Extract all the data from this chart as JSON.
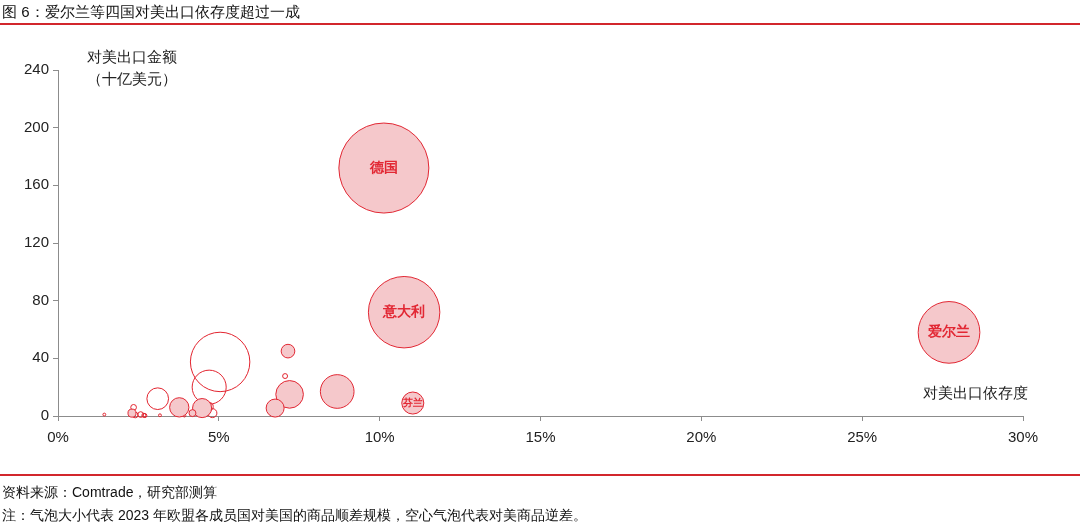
{
  "chart_data": {
    "type": "bubble",
    "title": "图 6：爱尔兰等四国对美出口依存度超过一成",
    "xlabel": "对美出口依存度",
    "ylabel": "对美出口金额（十亿美元）",
    "annotations": [
      {
        "text": "德国",
        "x": 10.13,
        "y": 172
      },
      {
        "text": "意大利",
        "x": 10.76,
        "y": 72
      },
      {
        "text": "爱尔兰",
        "x": 27.7,
        "y": 58
      },
      {
        "text": "芬兰",
        "x": 11.03,
        "y": 9
      },
      "资料来源：Comtrade，研究部测算",
      "注：气泡大小代表 2023 年欧盟各成员国对美国的商品顺差规模，空心气泡代表对美商品逆差。"
    ],
    "series": [
      {
        "color": "#f5c8cb",
        "x": [
          10.13,
          10.76,
          27.7,
          11.03,
          8.68,
          7.2,
          7.15,
          6.75,
          3.77,
          4.48,
          4.18,
          2.3
        ],
        "values": [
          172,
          72,
          58,
          9,
          17,
          15,
          45,
          5.5,
          6,
          5.5,
          2,
          2
        ],
        "sizes": [
          1,
          0.63,
          0.47,
          0.06,
          0.14,
          0.094,
          0.023,
          0.04,
          0.046,
          0.045,
          0.006,
          0.008
        ]
      },
      {
        "color": "#e3242f",
        "x": [
          5.04,
          4.7,
          3.1,
          7.06,
          4.7,
          4.8,
          2.35,
          2.4,
          2.57,
          2.67,
          2.7,
          1.44,
          3.17,
          3.93
        ],
        "values": [
          37.5,
          20,
          12,
          27.7,
          6.5,
          2,
          6,
          0.7,
          1,
          0.5,
          0.3,
          1,
          0.5,
          0.3
        ],
        "sizes": [
          0.436,
          0.143,
          0.058,
          0.003,
          0.008,
          0.01,
          0.004,
          0.004,
          0.004,
          0.002,
          0.002,
          0.001,
          0.001,
          0.001
        ]
      }
    ],
    "xlim": [
      0,
      30
    ],
    "xticks": [
      {
        "value": 0,
        "label": "0%"
      },
      {
        "value": 5,
        "label": "5%"
      },
      {
        "value": 10,
        "label": "10%"
      },
      {
        "value": 15,
        "label": "15%"
      },
      {
        "value": 20,
        "label": "20%"
      },
      {
        "value": 25,
        "label": "25%"
      },
      {
        "value": 30,
        "label": "30%"
      }
    ],
    "ylim": [
      0,
      240
    ],
    "yticks": [
      0,
      40,
      80,
      120,
      160,
      200,
      240
    ],
    "grid": false
  }
}
